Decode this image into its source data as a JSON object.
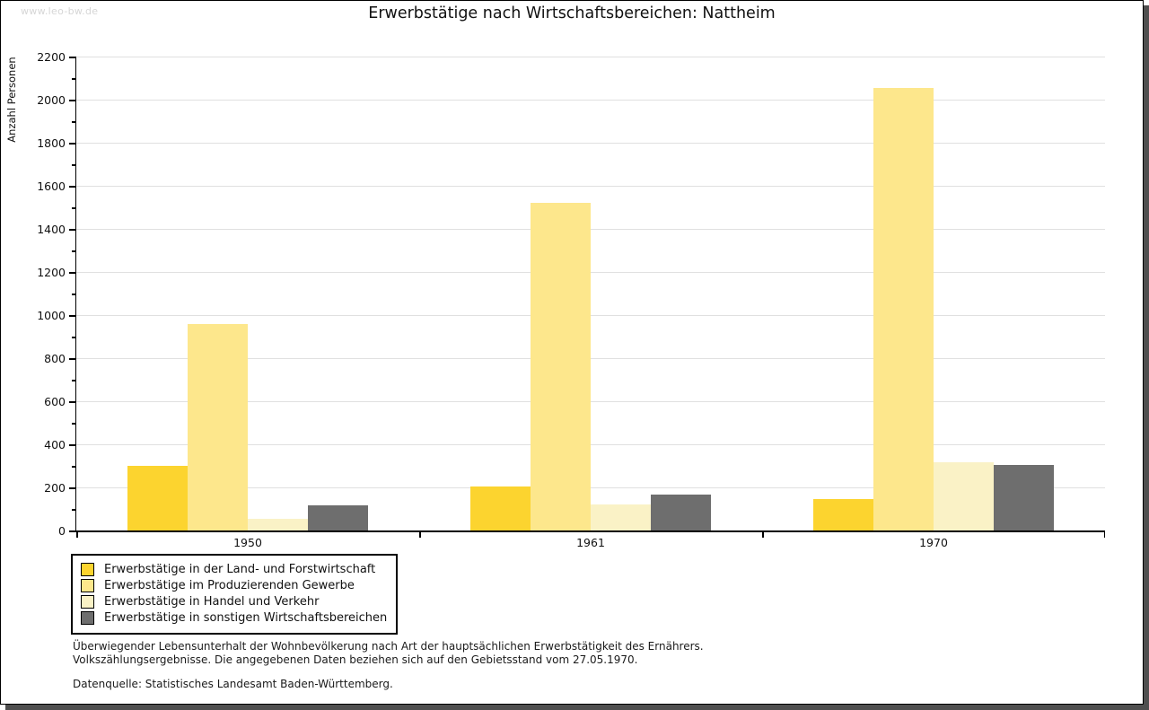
{
  "watermark": "www.leo-bw.de",
  "header": {
    "title": "Erwerbstätige nach Wirtschaftsbereichen: Nattheim"
  },
  "chart_data": {
    "type": "bar",
    "title": "Erwerbstätige nach Wirtschaftsbereichen: Nattheim",
    "xlabel": "",
    "ylabel": "Anzahl Personen",
    "categories": [
      "1950",
      "1961",
      "1970"
    ],
    "series": [
      {
        "name": "Erwerbstätige in der Land- und Forstwirtschaft",
        "color": "#fcd42f",
        "values": [
          300,
          205,
          145
        ]
      },
      {
        "name": "Erwerbstätige im Produzierenden Gewerbe",
        "color": "#fde78c",
        "values": [
          960,
          1520,
          2055
        ]
      },
      {
        "name": "Erwerbstätige in Handel und Verkehr",
        "color": "#faf2c6",
        "values": [
          55,
          120,
          315
        ]
      },
      {
        "name": "Erwerbstätige in sonstigen Wirtschaftsbereichen",
        "color": "#6e6e6e",
        "values": [
          115,
          165,
          305
        ]
      }
    ],
    "ylim": [
      0,
      2200
    ],
    "ytick_step": 200,
    "grid": true,
    "legend_position": "bottom-left",
    "colors_note": {
      "grid": "#e0e0e0",
      "axis": "#000000",
      "shadow": "#4f4f4f",
      "watermark": "#d6d6d6"
    }
  },
  "footnote": {
    "line1": "Überwiegender Lebensunterhalt der Wohnbevölkerung nach Art der hauptsächlichen Erwerbstätigkeit des Ernährers.",
    "line2": "Volkszählungsergebnisse. Die angegebenen Daten beziehen sich auf den Gebietsstand vom 27.05.1970.",
    "source": "Datenquelle: Statistisches Landesamt Baden-Württemberg."
  }
}
